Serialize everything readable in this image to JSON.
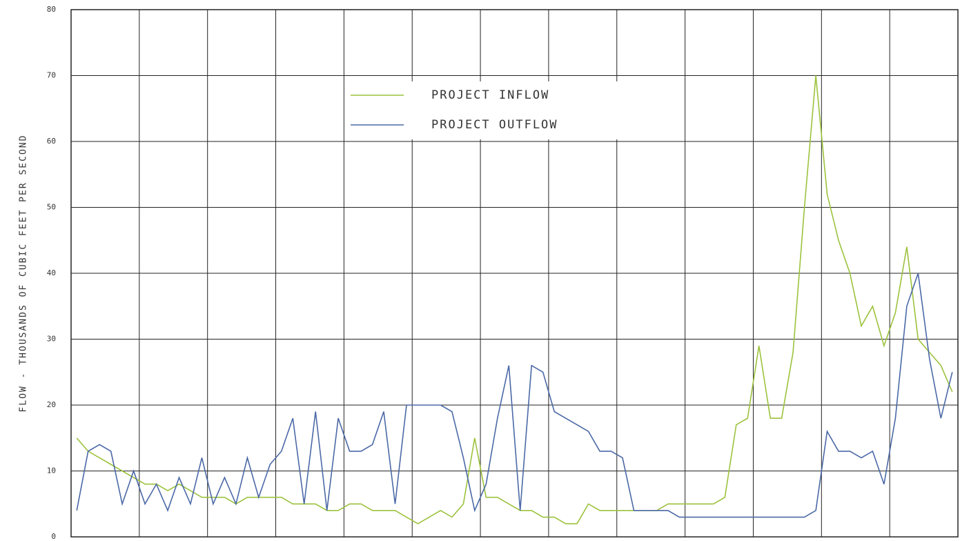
{
  "chart_data": {
    "type": "line",
    "y_axis_label": "FLOW - THOUSANDS OF CUBIC FEET PER SECOND",
    "categories": [
      null,
      null,
      null,
      null,
      null,
      null,
      null,
      null,
      null,
      null,
      null,
      null,
      null,
      null,
      null,
      null,
      null,
      null,
      null,
      null,
      null,
      null,
      null,
      null,
      null,
      null,
      null,
      null,
      null,
      null,
      null,
      null,
      null,
      null,
      null,
      null,
      null,
      null,
      null,
      null,
      null,
      null,
      null,
      null,
      null,
      null,
      null,
      null,
      null,
      null,
      null,
      null,
      null,
      null,
      null,
      null,
      null,
      null,
      null,
      null,
      null,
      null,
      null,
      null,
      null,
      null,
      null,
      null,
      null,
      null,
      null,
      null,
      null,
      null,
      null,
      null,
      null,
      null
    ],
    "series": [
      {
        "name": "PROJECT INFLOW",
        "color": "#9cc23c",
        "values": [
          15,
          13,
          12,
          11,
          10,
          9,
          8,
          8,
          7,
          8,
          7,
          6,
          6,
          6,
          5,
          6,
          6,
          6,
          6,
          5,
          5,
          5,
          4,
          4,
          5,
          5,
          4,
          4,
          4,
          3,
          2,
          3,
          4,
          3,
          5,
          15,
          6,
          6,
          5,
          4,
          4,
          3,
          3,
          2,
          2,
          5,
          4,
          4,
          4,
          4,
          4,
          4,
          5,
          5,
          5,
          5,
          5,
          6,
          17,
          18,
          29,
          18,
          18,
          28,
          50,
          70,
          52,
          45,
          40,
          32,
          35,
          29,
          34,
          44,
          30,
          28,
          26,
          22
        ]
      },
      {
        "name": "PROJECT OUTFLOW",
        "color": "#4a68a6",
        "values": [
          4,
          13,
          14,
          13,
          5,
          10,
          5,
          8,
          4,
          9,
          5,
          12,
          5,
          9,
          5,
          12,
          6,
          11,
          13,
          18,
          5,
          19,
          4,
          18,
          13,
          13,
          14,
          19,
          5,
          20,
          20,
          20,
          20,
          19,
          12,
          4,
          8,
          18,
          26,
          4,
          26,
          25,
          19,
          18,
          17,
          16,
          13,
          13,
          12,
          4,
          4,
          4,
          4,
          3,
          3,
          3,
          3,
          3,
          3,
          3,
          3,
          3,
          3,
          3,
          3,
          4,
          16,
          13,
          13,
          12,
          13,
          8,
          18,
          35,
          40,
          27,
          18,
          25
        ]
      }
    ],
    "ylim": [
      0,
      80
    ],
    "yticks": [
      0,
      10,
      20,
      30,
      40,
      50,
      60,
      70,
      80
    ],
    "grid": true
  }
}
